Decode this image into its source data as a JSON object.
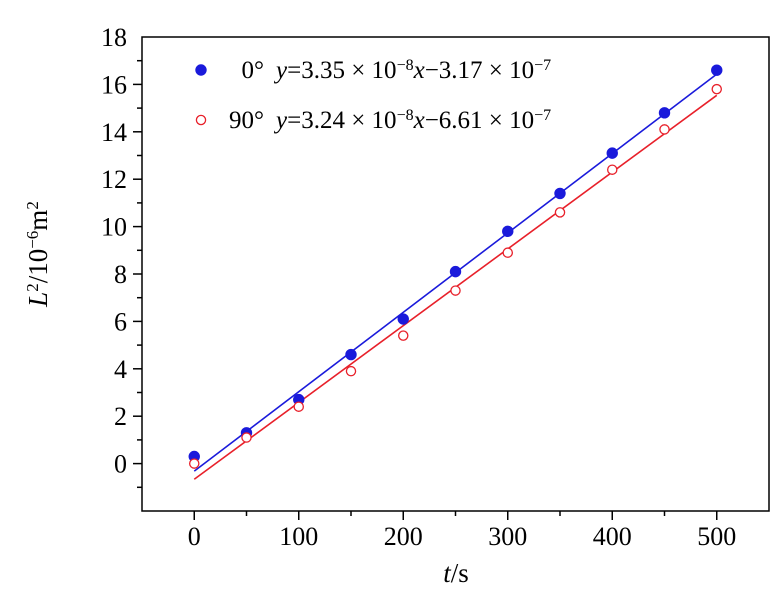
{
  "chart_data": {
    "type": "scatter",
    "title": "",
    "xlabel": {
      "var": "t",
      "unit": "/s"
    },
    "ylabel": {
      "var": "L",
      "sup1": "2",
      "mid": "/10",
      "sup2": "−6",
      "unit": "m",
      "sup3": "2"
    },
    "xlim": [
      -50,
      550
    ],
    "ylim": [
      -2,
      18
    ],
    "xticks": [
      0,
      100,
      200,
      300,
      400,
      500
    ],
    "yticks": [
      0,
      2,
      4,
      6,
      8,
      10,
      12,
      14,
      16,
      18
    ],
    "grid": false,
    "legend_position": "top-left",
    "series": [
      {
        "angle": "0°",
        "equation": {
          "var": "y",
          "eq": "=3.35 × 10",
          "exp1": "−8",
          "x": "x",
          "mid": "−3.17 × 10",
          "exp2": "−7"
        },
        "color": "#1a1adb",
        "marker": "filled-circle",
        "x": [
          0,
          50,
          100,
          150,
          200,
          250,
          300,
          350,
          400,
          450,
          500
        ],
        "y": [
          0.3,
          1.3,
          2.7,
          4.6,
          6.1,
          8.1,
          9.8,
          11.4,
          13.1,
          14.8,
          16.6
        ],
        "fit": {
          "slope": 0.0335,
          "intercept": -0.317
        }
      },
      {
        "angle": "90°",
        "equation": {
          "var": "y",
          "eq": "=3.24 × 10",
          "exp1": "−8",
          "x": "x",
          "mid": "−6.61 × 10",
          "exp2": "−7"
        },
        "color": "#e8202a",
        "marker": "open-circle",
        "x": [
          0,
          50,
          100,
          150,
          200,
          250,
          300,
          350,
          400,
          450,
          500
        ],
        "y": [
          0.0,
          1.1,
          2.4,
          3.9,
          5.4,
          7.3,
          8.9,
          10.6,
          12.4,
          14.1,
          15.8
        ],
        "fit": {
          "slope": 0.0324,
          "intercept": -0.661
        }
      }
    ]
  }
}
